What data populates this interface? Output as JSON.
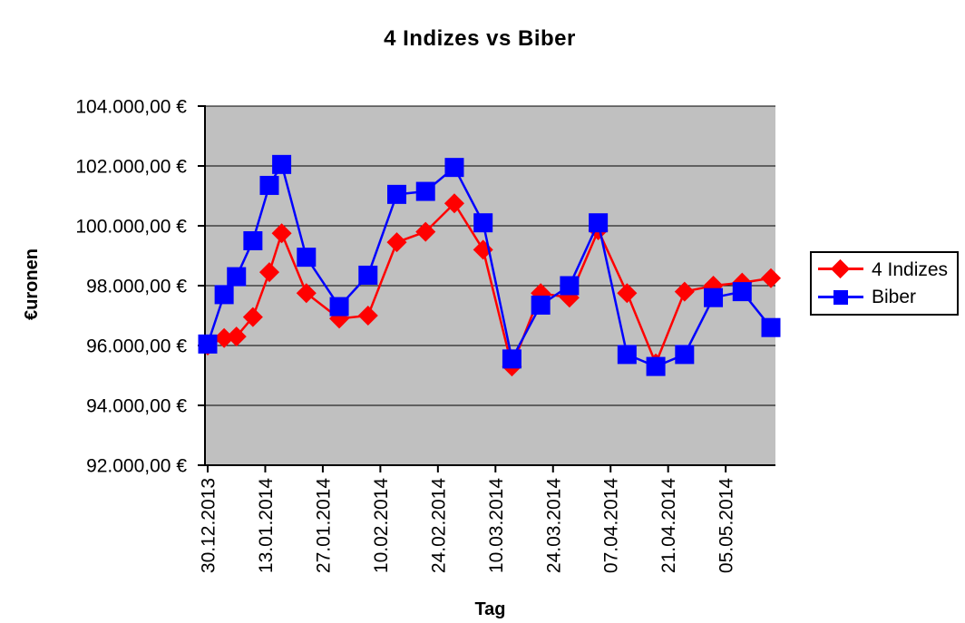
{
  "chart_data": {
    "type": "line",
    "title": "4 Indizes vs Biber",
    "xlabel": "Tag",
    "ylabel": "€uronen",
    "plot_bg_color": "#C0C0C0",
    "gridline_color": "#000000",
    "axis_color": "#000000",
    "grid_on": true,
    "legend_position": "right",
    "y_axis": {
      "min": 92000,
      "max": 104000,
      "tick_step": 2000,
      "tick_values": [
        104000,
        102000,
        100000,
        98000,
        96000,
        94000,
        92000
      ],
      "tick_labels_top_to_bottom": [
        "104.000,00 €",
        "102.000,00 €",
        "100.000,00 €",
        "98.000,00 €",
        "96.000,00 €",
        "94.000,00 €",
        "92.000,00 €"
      ]
    },
    "x_axis": {
      "tick_labels": [
        "30.12.2013",
        "13.01.2014",
        "27.01.2014",
        "10.02.2014",
        "24.02.2014",
        "10.03.2014",
        "24.03.2014",
        "07.04.2014",
        "21.04.2014",
        "05.05.2014"
      ],
      "tick_days": [
        0,
        14,
        28,
        42,
        56,
        70,
        84,
        98,
        112,
        126
      ],
      "day_max": 137,
      "label_rotation_deg": -90
    },
    "point_days": [
      0,
      4,
      7,
      11,
      15,
      18,
      24,
      32,
      39,
      46,
      53,
      60,
      67,
      74,
      81,
      88,
      95,
      102,
      109,
      116,
      123,
      130,
      137
    ],
    "series": [
      {
        "name": "4 Indizes",
        "color": "#FF0000",
        "marker": "diamond",
        "values": [
          96000,
          96250,
          96300,
          96950,
          98450,
          99750,
          97750,
          96900,
          97000,
          99450,
          99800,
          100750,
          99200,
          95300,
          97750,
          97600,
          99850,
          97750,
          95400,
          97800,
          98000,
          98100,
          98250
        ]
      },
      {
        "name": "Biber",
        "color": "#0000FF",
        "marker": "square",
        "values": [
          96050,
          97700,
          98300,
          99500,
          101350,
          102050,
          98950,
          97300,
          98350,
          101050,
          101150,
          101950,
          100100,
          95550,
          97350,
          98000,
          100100,
          95700,
          95300,
          95700,
          97600,
          97800,
          96600
        ]
      }
    ]
  }
}
